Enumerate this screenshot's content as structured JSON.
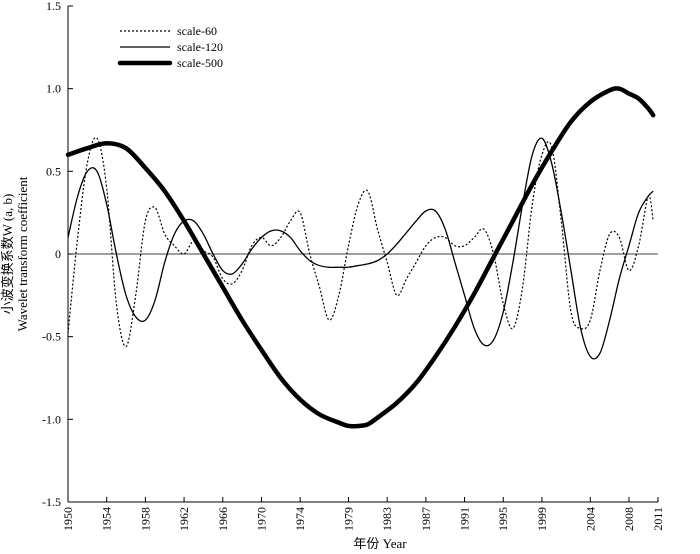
{
  "chart_data": {
    "type": "line",
    "title": "",
    "xlabel": "年份 Year",
    "ylabel_cn": "小波变换系数W (a, b)",
    "ylabel_en": "Wavelet transform coefficient",
    "xlim": [
      1950,
      2011
    ],
    "ylim": [
      -1.5,
      1.5
    ],
    "x_ticks": [
      1950,
      1954,
      1958,
      1962,
      1966,
      1970,
      1974,
      1979,
      1983,
      1987,
      1991,
      1995,
      1999,
      2004,
      2008,
      2011
    ],
    "y_ticks": [
      {
        "value": 1.5,
        "label": "1.5"
      },
      {
        "value": 1.0,
        "label": "1.0"
      },
      {
        "value": 0.5,
        "label": "0.5"
      },
      {
        "value": 0,
        "label": "0"
      },
      {
        "value": -0.5,
        "label": "-0.5"
      },
      {
        "value": -1.0,
        "label": "-1.0"
      },
      {
        "value": -1.5,
        "label": "-1.5"
      }
    ],
    "zero_line": true,
    "grid": false,
    "legend_position": "top-left",
    "series": [
      {
        "name": "scale-60",
        "style": "dotted",
        "x": [
          1950,
          1951,
          1952,
          1953,
          1954,
          1955,
          1956,
          1957,
          1958,
          1959,
          1960,
          1961,
          1962,
          1963,
          1964,
          1965,
          1966,
          1967,
          1968,
          1969,
          1970,
          1971,
          1972,
          1973,
          1974,
          1975,
          1976,
          1977,
          1978,
          1979,
          1980,
          1981,
          1982,
          1983,
          1984,
          1985,
          1986,
          1987,
          1988,
          1989,
          1990,
          1991,
          1992,
          1993,
          1994,
          1995,
          1996,
          1997,
          1998,
          1999,
          2000,
          2001,
          2002,
          2003,
          2004,
          2005,
          2006,
          2007,
          2008,
          2009,
          2010,
          2010.5
        ],
        "values": [
          -0.48,
          0.1,
          0.55,
          0.7,
          0.4,
          -0.3,
          -0.56,
          -0.25,
          0.2,
          0.28,
          0.12,
          0.05,
          0.0,
          0.08,
          0.02,
          -0.02,
          -0.15,
          -0.18,
          -0.1,
          0.05,
          0.1,
          0.05,
          0.1,
          0.2,
          0.25,
          0.0,
          -0.2,
          -0.4,
          -0.25,
          0.05,
          0.3,
          0.38,
          0.15,
          -0.05,
          -0.25,
          -0.15,
          -0.05,
          0.05,
          0.1,
          0.1,
          0.05,
          0.05,
          0.1,
          0.15,
          0.0,
          -0.3,
          -0.45,
          -0.2,
          0.3,
          0.6,
          0.65,
          0.2,
          -0.35,
          -0.45,
          -0.4,
          -0.1,
          0.12,
          0.1,
          -0.1,
          0.05,
          0.35,
          0.2
        ]
      },
      {
        "name": "scale-120",
        "style": "thin",
        "x": [
          1950,
          1951,
          1952,
          1953,
          1954,
          1955,
          1956,
          1957,
          1958,
          1959,
          1960,
          1961,
          1962,
          1963,
          1964,
          1965,
          1966,
          1967,
          1968,
          1969,
          1970,
          1971,
          1972,
          1973,
          1974,
          1975,
          1976,
          1977,
          1978,
          1979,
          1980,
          1981,
          1982,
          1983,
          1984,
          1985,
          1986,
          1987,
          1988,
          1989,
          1990,
          1991,
          1992,
          1993,
          1994,
          1995,
          1996,
          1997,
          1998,
          1999,
          2000,
          2001,
          2002,
          2003,
          2004,
          2005,
          2006,
          2007,
          2008,
          2009,
          2010,
          2010.5
        ],
        "values": [
          0.1,
          0.35,
          0.5,
          0.5,
          0.3,
          0.0,
          -0.25,
          -0.38,
          -0.4,
          -0.28,
          -0.05,
          0.12,
          0.2,
          0.2,
          0.12,
          0.0,
          -0.1,
          -0.12,
          -0.06,
          0.03,
          0.1,
          0.14,
          0.14,
          0.1,
          0.02,
          -0.04,
          -0.07,
          -0.08,
          -0.08,
          -0.08,
          -0.07,
          -0.06,
          -0.04,
          0.0,
          0.06,
          0.13,
          0.2,
          0.26,
          0.26,
          0.15,
          -0.05,
          -0.25,
          -0.45,
          -0.55,
          -0.52,
          -0.35,
          -0.05,
          0.3,
          0.6,
          0.7,
          0.55,
          0.25,
          -0.1,
          -0.45,
          -0.62,
          -0.6,
          -0.4,
          -0.15,
          0.05,
          0.25,
          0.35,
          0.38
        ]
      },
      {
        "name": "scale-500",
        "style": "thick",
        "x": [
          1950,
          1952,
          1954,
          1956,
          1958,
          1960,
          1962,
          1964,
          1966,
          1968,
          1970,
          1972,
          1974,
          1976,
          1978,
          1979,
          1980,
          1981,
          1982,
          1984,
          1986,
          1988,
          1990,
          1992,
          1994,
          1996,
          1998,
          2000,
          2002,
          2004,
          2006,
          2007,
          2008,
          2009,
          2010,
          2010.5
        ],
        "values": [
          0.6,
          0.64,
          0.67,
          0.64,
          0.52,
          0.38,
          0.2,
          0.0,
          -0.2,
          -0.4,
          -0.58,
          -0.75,
          -0.88,
          -0.97,
          -1.02,
          -1.04,
          -1.04,
          -1.03,
          -0.99,
          -0.9,
          -0.78,
          -0.62,
          -0.44,
          -0.24,
          -0.02,
          0.2,
          0.42,
          0.62,
          0.8,
          0.92,
          0.99,
          1.0,
          0.97,
          0.94,
          0.88,
          0.84
        ]
      }
    ]
  }
}
